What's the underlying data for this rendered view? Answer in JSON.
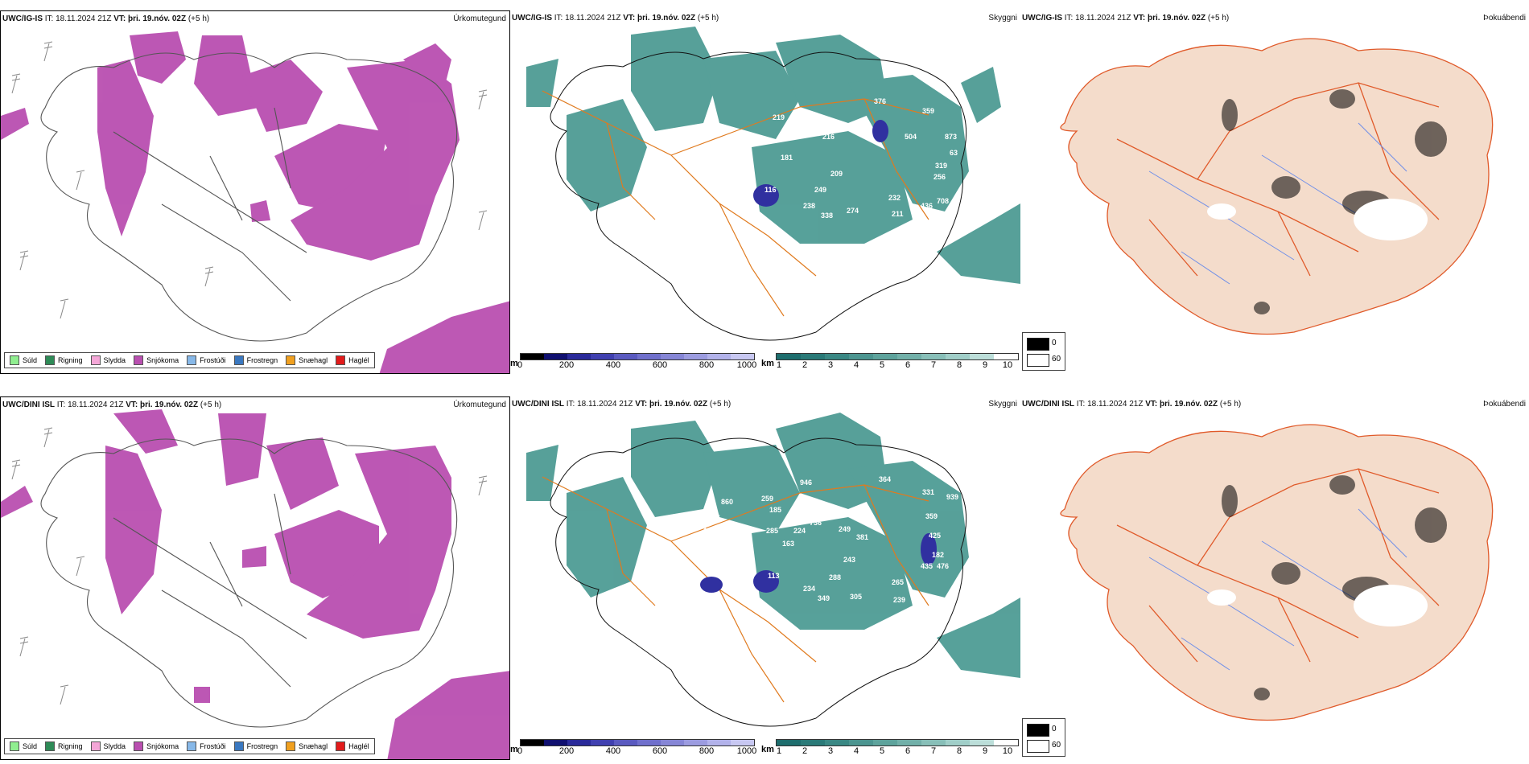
{
  "rows": [
    {
      "model": "UWC/IG-IS",
      "it": "IT: 18.11.2024 21Z",
      "vt_label": "VT:",
      "vt_value": "þri. 19.nóv. 02Z",
      "offset": "(+5 h)",
      "labels": [
        "219",
        "181",
        "216",
        "209",
        "249",
        "238",
        "338",
        "274",
        "232",
        "211",
        "436",
        "708",
        "256",
        "319",
        "504",
        "359",
        "873",
        "63",
        "376",
        "761",
        "234",
        "116"
      ]
    },
    {
      "model": "UWC/DINI ISL",
      "it": "IT: 18.11.2024 21Z",
      "vt_label": "VT:",
      "vt_value": "þri. 19.nóv. 02Z",
      "offset": "(+5 h)",
      "labels": [
        "259",
        "185",
        "946",
        "736",
        "285",
        "224",
        "163",
        "249",
        "381",
        "243",
        "288",
        "234",
        "349",
        "305",
        "265",
        "239",
        "364",
        "331",
        "939",
        "359",
        "425",
        "182",
        "435",
        "476",
        "995",
        "860",
        "475",
        "168",
        "113"
      ]
    }
  ],
  "panel_titles": {
    "precip_type": "Úrkomutegund",
    "visibility": "Skyggni",
    "fog": "Þokuábendi"
  },
  "precip_legend": [
    {
      "label": "Súld",
      "color": "#90ee90"
    },
    {
      "label": "Rigning",
      "color": "#2e8b57"
    },
    {
      "label": "Slydda",
      "color": "#f4a6d7"
    },
    {
      "label": "Snjókoma",
      "color": "#b94fb0"
    },
    {
      "label": "Frostúði",
      "color": "#87b8e8"
    },
    {
      "label": "Frostregn",
      "color": "#3a78c0"
    },
    {
      "label": "Snæhagl",
      "color": "#f0a020"
    },
    {
      "label": "Haglél",
      "color": "#e21b1b"
    }
  ],
  "height_bar": {
    "unit": "m",
    "ticks": [
      "0",
      "200",
      "400",
      "600",
      "800",
      "1000"
    ],
    "colors": [
      "#000",
      "#101070",
      "#2a2a9a",
      "#4040b0",
      "#5a5ac0",
      "#7070cc",
      "#8686d6",
      "#9c9ce0",
      "#b2b2ea",
      "#c8c8f2"
    ]
  },
  "vis_bar": {
    "unit": "km",
    "ticks": [
      "1",
      "2",
      "3",
      "4",
      "5",
      "6",
      "7",
      "8",
      "9",
      "10"
    ],
    "colors": [
      "#1e6e6e",
      "#2a7a78",
      "#3a8884",
      "#4c9590",
      "#5ea39c",
      "#72b0a9",
      "#88bfb8",
      "#a0cec8",
      "#bcded9",
      "#ffffff"
    ]
  },
  "fog_legend": [
    {
      "value": "0",
      "color": "#000000"
    },
    {
      "value": "60",
      "color": "#ffffff"
    }
  ]
}
